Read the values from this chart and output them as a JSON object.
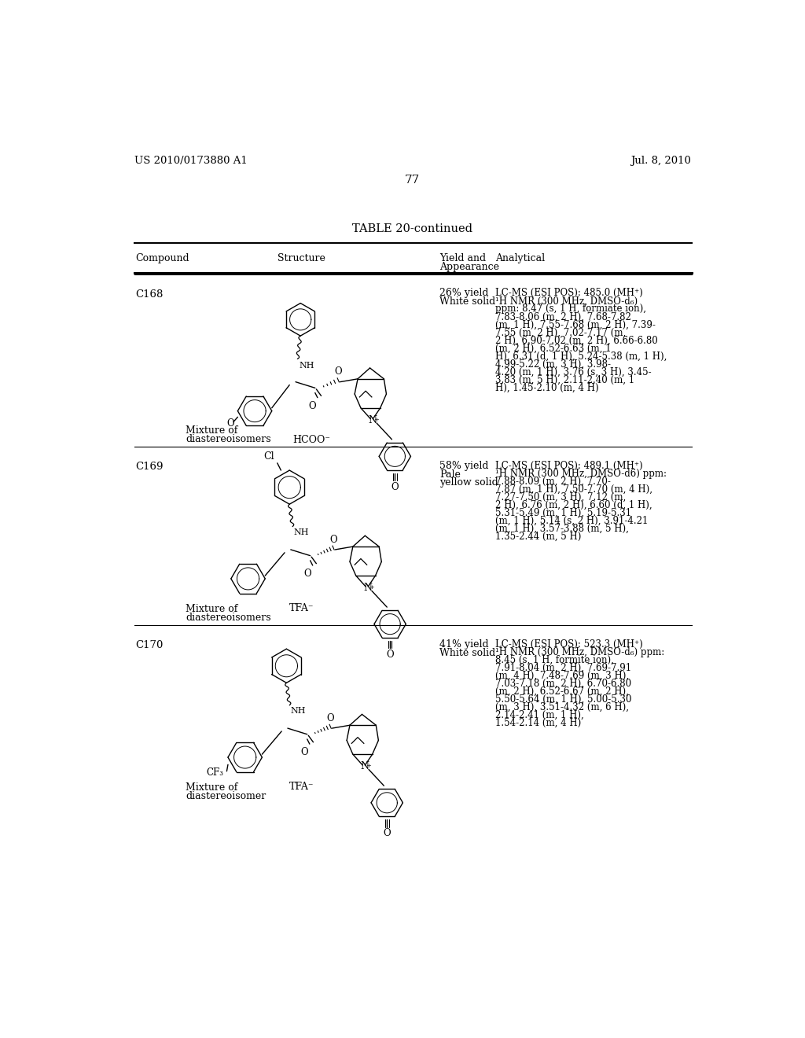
{
  "background_color": "#ffffff",
  "header_left": "US 2010/0173880 A1",
  "header_right": "Jul. 8, 2010",
  "page_number": "77",
  "table_title": "TABLE 20-continued",
  "compounds": [
    {
      "id": "C168",
      "yield_line1": "26% yield",
      "yield_line2": "White solid",
      "analytical_lines": [
        "LC-MS (ESI POS): 485.0 (MH⁺)",
        "¹H NMR (300 MHz, DMSO-d₆)",
        "ppm: 8.47 (s, 1 H, formiate ion),",
        "7.83-8.06 (m, 2 H), 7.68-7.82",
        "(m, 1 H), 7.55-7.68 (m, 2 H), 7.39-",
        "7.55 (m, 2 H), 7.02-7.17 (m,",
        "2 H), 6.90-7.02 (m, 2 H), 6.66-6.80",
        "(m, 2 H), 6.52-6.63 (m, 1",
        "H), 6.31 (d, 1 H), 5.24-5.38 (m, 1 H),",
        "4.99-5.22 (m, 3 H), 3.98-",
        "4.20 (m, 1 H), 3.76 (s, 3 H), 3.45-",
        "3.83 (m, 5 H), 2.11-2.40 (m, 1",
        "H), 1.45-2.10 (m, 4 H)"
      ],
      "note": "Mixture of\ndiastereoisomers",
      "counterion": "HCOO⁻",
      "substituent": "OCH₃"
    },
    {
      "id": "C169",
      "yield_line1": "58% yield",
      "yield_line2": "Pale",
      "yield_line3": "yellow solid",
      "analytical_lines": [
        "LC-MS (ESI POS): 489.1 (MH⁺)",
        "¹H NMR (300 MHz, DMSO-d6) ppm:",
        "7.88-8.09 (m, 2 H), 7.70-",
        "7.87 (m, 1 H), 7.50-7.70 (m, 4 H),",
        "7.27-7.50 (m, 3 H), 7.12 (m,",
        "2 H), 6.76 (m, 2 H), 6.60 (d, 1 H),",
        "5.31-5.49 (m, 1 H), 5.19-5.31",
        "(m, 1 H), 5.14 (s, 2 H), 3.91-4.21",
        "(m, 1 H), 3.57-3.88 (m, 5 H),",
        "1.35-2.44 (m, 5 H)"
      ],
      "note": "Mixture of\ndiastereoisomers",
      "counterion": "TFA⁻",
      "substituent": "Cl"
    },
    {
      "id": "C170",
      "yield_line1": "41% yield",
      "yield_line2": "White solid",
      "analytical_lines": [
        "LC-MS (ESI POS): 523.3 (MH⁺)",
        "¹H NMR (300 MHz, DMSO-d₆) ppm:",
        "8.45 (s, 1 H, formite ion),",
        "7.91-8.04 (m, 2 H), 7.69-7.91",
        "(m, 4 H), 7.48-7.69 (m, 3 H),",
        "7.03-7.18 (m, 2 H), 6.70-6.80",
        "(m, 2 H), 6.52-6.67 (m, 2 H),",
        "5.50-5.64 (m, 1 H), 5.00-5.30",
        "(m, 3 H), 3.51-4.32 (m, 6 H),",
        "2.14-2.41 (m, 1 H),",
        "1.54-2.14 (m, 4 H)"
      ],
      "note": "Mixture of\ndiastereoisomer",
      "counterion": "TFA⁻",
      "substituent": "CF₃"
    }
  ]
}
